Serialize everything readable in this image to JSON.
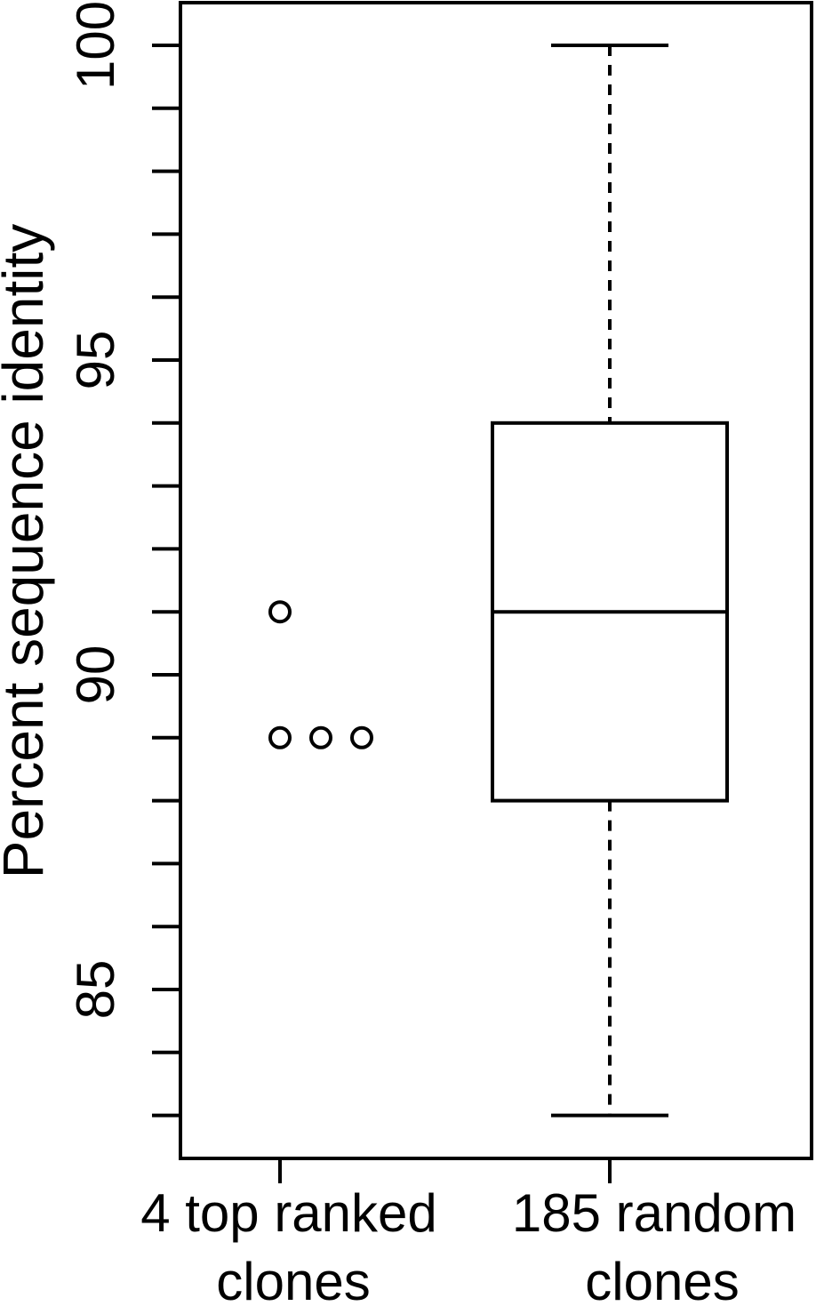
{
  "chart_data": {
    "type": "box",
    "title": "",
    "ylabel": "Percent sequence identity",
    "xlabel": "",
    "ylim": [
      82.4,
      103.0
    ],
    "yticks_major": [
      85,
      90,
      95,
      100
    ],
    "yticks_minor_step": 1,
    "categories": [
      {
        "line1": "4 top ranked",
        "line2": "clones"
      },
      {
        "line1": "185 random",
        "line2": "clones"
      }
    ],
    "groups": [
      {
        "kind": "points",
        "points": [
          91.0,
          89.0,
          89.0,
          89.0
        ]
      },
      {
        "kind": "box",
        "whisker_low": 83.0,
        "q1": 88.0,
        "median": 91.0,
        "q3": 94.0,
        "whisker_high": 100.0
      }
    ]
  }
}
